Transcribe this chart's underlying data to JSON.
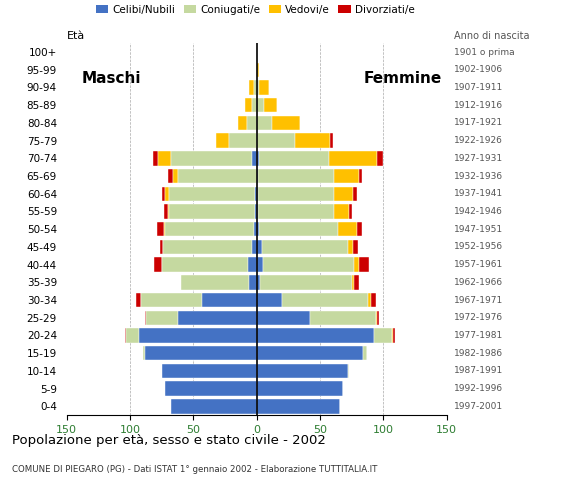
{
  "age_groups": [
    "0-4",
    "5-9",
    "10-14",
    "15-19",
    "20-24",
    "25-29",
    "30-34",
    "35-39",
    "40-44",
    "45-49",
    "50-54",
    "55-59",
    "60-64",
    "65-69",
    "70-74",
    "75-79",
    "80-84",
    "85-89",
    "90-94",
    "95-99",
    "100+"
  ],
  "birth_years": [
    "1997-2001",
    "1992-1996",
    "1987-1991",
    "1982-1986",
    "1977-1981",
    "1972-1976",
    "1967-1971",
    "1962-1966",
    "1957-1961",
    "1952-1956",
    "1947-1951",
    "1942-1946",
    "1937-1941",
    "1932-1936",
    "1927-1931",
    "1922-1926",
    "1917-1921",
    "1912-1916",
    "1907-1911",
    "1902-1906",
    "1901 o prima"
  ],
  "males": {
    "celibi": [
      68,
      72,
      75,
      88,
      93,
      62,
      43,
      6,
      7,
      4,
      2,
      1,
      1,
      0,
      4,
      0,
      0,
      0,
      0,
      0,
      0
    ],
    "coniugati": [
      0,
      0,
      0,
      2,
      10,
      25,
      48,
      54,
      68,
      70,
      70,
      68,
      68,
      62,
      64,
      22,
      8,
      4,
      2,
      0,
      0
    ],
    "vedovi": [
      0,
      0,
      0,
      0,
      0,
      0,
      0,
      0,
      0,
      0,
      1,
      1,
      3,
      4,
      10,
      10,
      7,
      5,
      4,
      0,
      0
    ],
    "divorziati": [
      0,
      0,
      0,
      0,
      1,
      1,
      4,
      0,
      6,
      2,
      6,
      3,
      3,
      4,
      4,
      0,
      0,
      0,
      0,
      0,
      0
    ]
  },
  "females": {
    "nubili": [
      66,
      68,
      72,
      84,
      93,
      42,
      20,
      3,
      5,
      4,
      2,
      1,
      1,
      1,
      2,
      0,
      0,
      0,
      0,
      0,
      0
    ],
    "coniugate": [
      0,
      0,
      1,
      3,
      14,
      52,
      68,
      72,
      72,
      68,
      62,
      60,
      60,
      60,
      55,
      30,
      12,
      6,
      2,
      0,
      0
    ],
    "vedove": [
      0,
      0,
      0,
      0,
      1,
      1,
      2,
      2,
      4,
      4,
      15,
      12,
      15,
      20,
      38,
      28,
      22,
      10,
      8,
      2,
      0
    ],
    "divorziate": [
      0,
      0,
      0,
      0,
      1,
      2,
      4,
      4,
      8,
      4,
      4,
      2,
      3,
      2,
      5,
      2,
      0,
      0,
      0,
      0,
      0
    ]
  },
  "color_celibi": "#4472c4",
  "color_coniugati": "#c5d9a0",
  "color_vedovi": "#ffc000",
  "color_divorziati": "#cc0000",
  "title": "Popolazione per età, sesso e stato civile - 2002",
  "subtitle": "COMUNE DI PIEGARO (PG) - Dati ISTAT 1° gennaio 2002 - Elaborazione TUTTITALIA.IT",
  "label_eta": "Età",
  "label_maschi": "Maschi",
  "label_femmine": "Femmine",
  "label_anno": "Anno di nascita",
  "xlim": 150,
  "bg_color": "#ffffff",
  "grid_color": "#aaaaaa"
}
